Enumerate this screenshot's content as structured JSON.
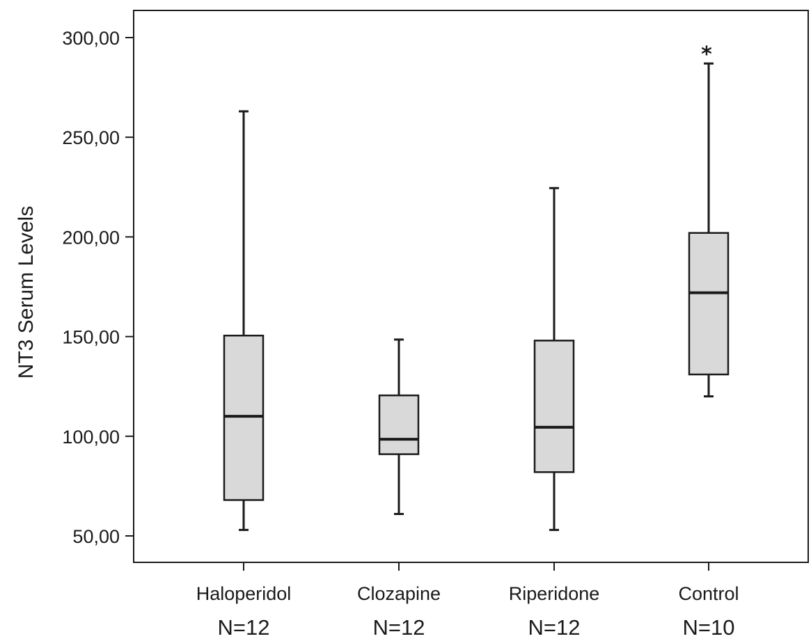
{
  "chart_data": {
    "type": "box",
    "ylabel": "NT3 Serum Levels",
    "xlabel": "",
    "ylim": [
      37,
      314
    ],
    "yticks": [
      50,
      100,
      150,
      200,
      250,
      300
    ],
    "ytick_labels": [
      "50,00",
      "100,00",
      "150,00",
      "200,00",
      "250,00",
      "300,00"
    ],
    "grid": false,
    "box_fill": "#d9d9d9",
    "line_color": "#1a1a1a",
    "categories": [
      "Haloperidol",
      "Clozapine",
      "Riperidone",
      "Control"
    ],
    "n_labels": [
      "N=12",
      "N=12",
      "N=12",
      "N=10"
    ],
    "boxes": [
      {
        "category": "Haloperidol",
        "min": 53,
        "q1": 68,
        "median": 110,
        "q3": 150.5,
        "max": 263
      },
      {
        "category": "Clozapine",
        "min": 61,
        "q1": 91,
        "median": 98.5,
        "q3": 120.5,
        "max": 148.5
      },
      {
        "category": "Riperidone",
        "min": 53,
        "q1": 82,
        "median": 104.5,
        "q3": 148,
        "max": 224.5
      },
      {
        "category": "Control",
        "min": 120,
        "q1": 131,
        "median": 172,
        "q3": 202,
        "max": 287,
        "annotation": "*"
      }
    ]
  }
}
